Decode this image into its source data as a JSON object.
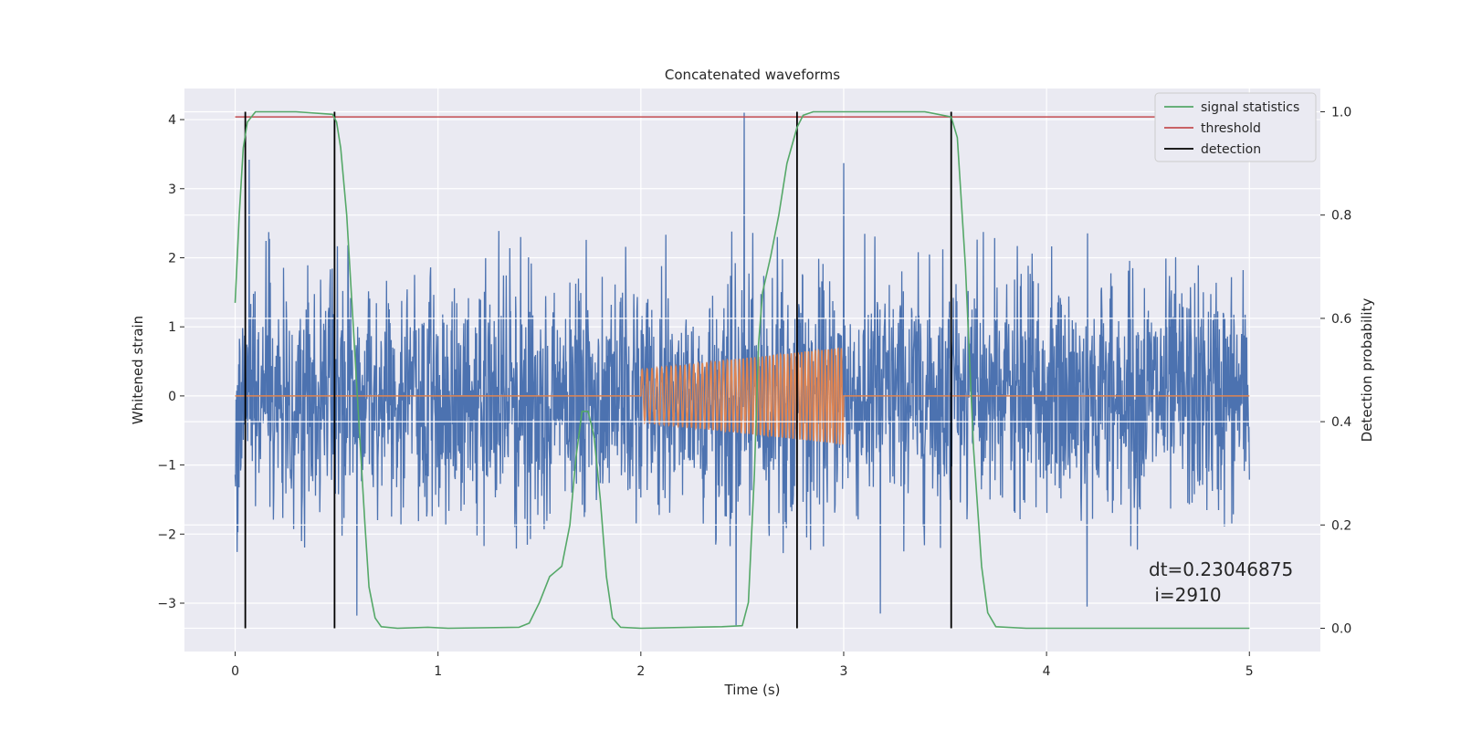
{
  "chart_data": {
    "type": "line",
    "title": "Concatenated waveforms",
    "xlabel": "Time (s)",
    "ylabel": "Whitened strain",
    "ylabel_right": "Detection probability",
    "xlim": [
      -0.25,
      5.35
    ],
    "ylim": [
      -3.7,
      4.45
    ],
    "ylim_right": [
      -0.045,
      1.045
    ],
    "x_ticks": [
      0,
      1,
      2,
      3,
      4,
      5
    ],
    "y_ticks": [
      -3,
      -2,
      -1,
      0,
      1,
      2,
      3,
      4
    ],
    "y_ticks_right": [
      0.0,
      0.2,
      0.4,
      0.6,
      0.8,
      1.0
    ],
    "x_tick_labels": [
      "0",
      "1",
      "2",
      "3",
      "4",
      "5"
    ],
    "y_tick_labels": [
      "−3",
      "−2",
      "−1",
      "0",
      "1",
      "2",
      "3",
      "4"
    ],
    "y_tick_labels_right": [
      "0.0",
      "0.2",
      "0.4",
      "0.6",
      "0.8",
      "1.0"
    ],
    "grid": true,
    "legend_position": "top-right",
    "legend": [
      {
        "label": "signal statistics",
        "color": "#55a868"
      },
      {
        "label": "threshold",
        "color": "#c44e52"
      },
      {
        "label": "detection",
        "color": "#000000"
      }
    ],
    "annotation": {
      "line1": "dt=0.23046875",
      "line2": " i=2910"
    },
    "series": [
      {
        "kind": "noise",
        "color": "#4c72b0",
        "x_range": [
          0,
          5
        ],
        "envelope_min": -2.3,
        "envelope_max": 2.4,
        "extremes": [
          {
            "x": 0.07,
            "y": 3.42
          },
          {
            "x": 2.51,
            "y": 4.1
          },
          {
            "x": 3.0,
            "y": 3.37
          },
          {
            "x": 0.6,
            "y": -3.18
          },
          {
            "x": 2.47,
            "y": -3.32
          },
          {
            "x": 3.18,
            "y": -3.15
          },
          {
            "x": 4.2,
            "y": -3.05
          }
        ]
      },
      {
        "kind": "chirp",
        "color": "#dd8452",
        "x_range": [
          0,
          5
        ],
        "chirp_range": [
          2.0,
          3.0
        ],
        "amplitude_start": 0.38,
        "amplitude_end": 0.7
      },
      {
        "name": "signal statistics",
        "axis": "right",
        "color": "#55a868",
        "points": [
          [
            0.0,
            0.63
          ],
          [
            0.02,
            0.8
          ],
          [
            0.04,
            0.93
          ],
          [
            0.06,
            0.98
          ],
          [
            0.1,
            1.0
          ],
          [
            0.3,
            1.0
          ],
          [
            0.48,
            0.995
          ],
          [
            0.5,
            0.98
          ],
          [
            0.52,
            0.93
          ],
          [
            0.55,
            0.8
          ],
          [
            0.58,
            0.6
          ],
          [
            0.61,
            0.4
          ],
          [
            0.64,
            0.2
          ],
          [
            0.66,
            0.08
          ],
          [
            0.69,
            0.02
          ],
          [
            0.72,
            0.003
          ],
          [
            0.8,
            0.0
          ],
          [
            0.95,
            0.002
          ],
          [
            1.05,
            0.0
          ],
          [
            1.4,
            0.002
          ],
          [
            1.45,
            0.01
          ],
          [
            1.5,
            0.05
          ],
          [
            1.55,
            0.1
          ],
          [
            1.58,
            0.11
          ],
          [
            1.61,
            0.12
          ],
          [
            1.65,
            0.2
          ],
          [
            1.68,
            0.33
          ],
          [
            1.71,
            0.42
          ],
          [
            1.74,
            0.42
          ],
          [
            1.77,
            0.37
          ],
          [
            1.8,
            0.25
          ],
          [
            1.83,
            0.1
          ],
          [
            1.86,
            0.02
          ],
          [
            1.9,
            0.002
          ],
          [
            2.0,
            0.0
          ],
          [
            2.4,
            0.003
          ],
          [
            2.5,
            0.005
          ],
          [
            2.53,
            0.05
          ],
          [
            2.56,
            0.3
          ],
          [
            2.58,
            0.55
          ],
          [
            2.6,
            0.65
          ],
          [
            2.64,
            0.72
          ],
          [
            2.68,
            0.8
          ],
          [
            2.72,
            0.9
          ],
          [
            2.77,
            0.97
          ],
          [
            2.8,
            0.993
          ],
          [
            2.85,
            1.0
          ],
          [
            3.0,
            1.0
          ],
          [
            3.4,
            1.0
          ],
          [
            3.53,
            0.99
          ],
          [
            3.56,
            0.95
          ],
          [
            3.6,
            0.7
          ],
          [
            3.64,
            0.35
          ],
          [
            3.68,
            0.12
          ],
          [
            3.71,
            0.03
          ],
          [
            3.75,
            0.003
          ],
          [
            3.9,
            0.0
          ],
          [
            5.0,
            0.0
          ]
        ]
      },
      {
        "name": "threshold",
        "axis": "right",
        "color": "#c44e52",
        "points": [
          [
            0,
            0.99
          ],
          [
            5,
            0.99
          ]
        ]
      },
      {
        "name": "detection",
        "axis": "right",
        "color": "#000000",
        "vlines_x": [
          0.05,
          0.49,
          2.77,
          3.53
        ],
        "vline_range": [
          0,
          1
        ]
      }
    ]
  }
}
